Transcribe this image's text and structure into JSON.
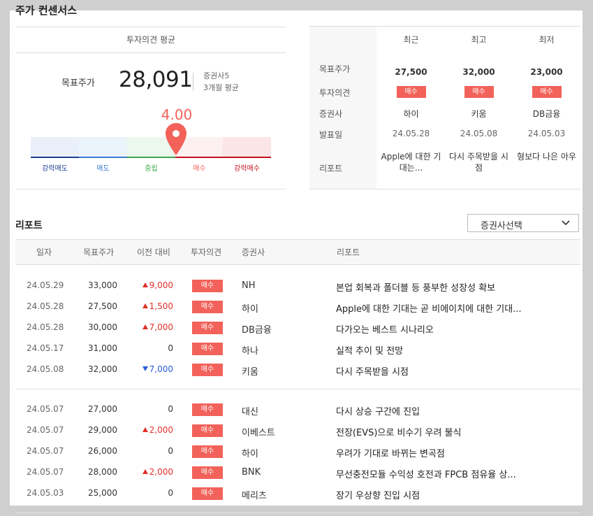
{
  "title": "주가 컨센서스",
  "consensus": {
    "section_title": "투자의견 평균",
    "target_price_label": "목표주가",
    "target_price_value": "28,091",
    "broker_count": "증권사5",
    "period": "3개월 평균",
    "score": "4.00",
    "score_fraction": 0.6,
    "scale_labels": [
      "강력매도",
      "매도",
      "중립",
      "매수",
      "강력매수"
    ],
    "colors": {
      "strong_sell": "#1c3f94",
      "sell": "#3a78d0",
      "neutral": "#3aa84a",
      "buy": "#f2625a",
      "strong_buy": "#c4101c"
    }
  },
  "summary_table": {
    "columns": [
      "최근",
      "최고",
      "최저"
    ],
    "row_labels": [
      "목표주가",
      "투자의견",
      "증권사",
      "발표일",
      "리포트"
    ],
    "cells": [
      {
        "target": "27,500",
        "opinion": "매수",
        "broker": "하이",
        "date": "24.05.28",
        "report": "Apple에 대한 기대는..."
      },
      {
        "target": "32,000",
        "opinion": "매수",
        "broker": "키움",
        "date": "24.05.08",
        "report": "다시 주목받을 시점"
      },
      {
        "target": "23,000",
        "opinion": "매수",
        "broker": "DB금융",
        "date": "24.05.03",
        "report": "형보다 나은 아우"
      }
    ]
  },
  "reports": {
    "title": "리포트",
    "broker_select": "증권사선택",
    "headers": [
      "일자",
      "목표주가",
      "이전 대비",
      "투자의견",
      "증권사",
      "리포트"
    ],
    "rows": [
      {
        "date": "24.05.29",
        "target": "33,000",
        "diff": "9,000",
        "dir": "up",
        "opinion": "매수",
        "broker": "NH",
        "report": "본업 회복과 폴더블 등 풍부한 성장성 확보"
      },
      {
        "date": "24.05.28",
        "target": "27,500",
        "diff": "1,500",
        "dir": "up",
        "opinion": "매수",
        "broker": "하이",
        "report": "Apple에 대한 기대는 곧 비에이치에 대한 기대..."
      },
      {
        "date": "24.05.28",
        "target": "30,000",
        "diff": "7,000",
        "dir": "up",
        "opinion": "매수",
        "broker": "DB금융",
        "report": "다가오는 베스트 시나리오"
      },
      {
        "date": "24.05.17",
        "target": "31,000",
        "diff": "0",
        "dir": "none",
        "opinion": "매수",
        "broker": "하나",
        "report": "실적 추이 및 전망"
      },
      {
        "date": "24.05.08",
        "target": "32,000",
        "diff": "7,000",
        "dir": "down",
        "opinion": "매수",
        "broker": "키움",
        "report": "다시 주목받을 시점"
      },
      {
        "date": "24.05.07",
        "target": "27,000",
        "diff": "0",
        "dir": "none",
        "opinion": "매수",
        "broker": "대신",
        "report": "다시 상승 구간에 진입"
      },
      {
        "date": "24.05.07",
        "target": "29,000",
        "diff": "2,000",
        "dir": "up",
        "opinion": "매수",
        "broker": "이베스트",
        "report": "전장(EVS)으로 비수기 우려 불식"
      },
      {
        "date": "24.05.07",
        "target": "26,000",
        "diff": "0",
        "dir": "none",
        "opinion": "매수",
        "broker": "하이",
        "report": "우려가 기대로 바뀌는 변곡점"
      },
      {
        "date": "24.05.07",
        "target": "28,000",
        "diff": "2,000",
        "dir": "up",
        "opinion": "매수",
        "broker": "BNK",
        "report": "무선충전모듈 수익성 호전과 FPCB 점유율 상..."
      },
      {
        "date": "24.05.03",
        "target": "25,000",
        "diff": "0",
        "dir": "none",
        "opinion": "매수",
        "broker": "메리츠",
        "report": "장기 우상향 진입 시점"
      }
    ]
  }
}
